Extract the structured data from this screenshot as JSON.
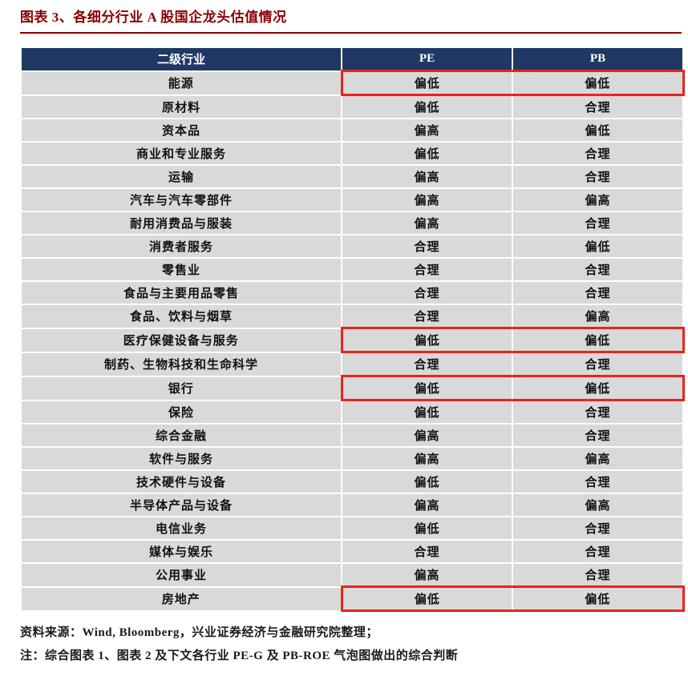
{
  "title": "图表 3、各细分行业 A 股国企龙头估值情况",
  "colors": {
    "title": "#8b0000",
    "header_bg": "#1f3864",
    "row_bg": "#d9d9d9",
    "highlight_red": "#e8231f",
    "cell_text": "#111111",
    "footer_text": "#1a1a1a"
  },
  "table": {
    "columns": [
      "二级行业",
      "PE",
      "PB"
    ],
    "rows": [
      {
        "industry": "能源",
        "pe": "偏低",
        "pb": "偏低",
        "highlight": true
      },
      {
        "industry": "原材料",
        "pe": "偏低",
        "pb": "合理",
        "highlight": false
      },
      {
        "industry": "资本品",
        "pe": "偏高",
        "pb": "偏低",
        "highlight": false
      },
      {
        "industry": "商业和专业服务",
        "pe": "偏低",
        "pb": "合理",
        "highlight": false
      },
      {
        "industry": "运输",
        "pe": "偏高",
        "pb": "合理",
        "highlight": false
      },
      {
        "industry": "汽车与汽车零部件",
        "pe": "偏高",
        "pb": "偏高",
        "highlight": false
      },
      {
        "industry": "耐用消费品与服装",
        "pe": "偏高",
        "pb": "合理",
        "highlight": false
      },
      {
        "industry": "消费者服务",
        "pe": "合理",
        "pb": "偏低",
        "highlight": false
      },
      {
        "industry": "零售业",
        "pe": "合理",
        "pb": "合理",
        "highlight": false
      },
      {
        "industry": "食品与主要用品零售",
        "pe": "合理",
        "pb": "合理",
        "highlight": false
      },
      {
        "industry": "食品、饮料与烟草",
        "pe": "合理",
        "pb": "偏高",
        "highlight": false
      },
      {
        "industry": "医疗保健设备与服务",
        "pe": "偏低",
        "pb": "偏低",
        "highlight": true
      },
      {
        "industry": "制药、生物科技和生命科学",
        "pe": "合理",
        "pb": "合理",
        "highlight": false
      },
      {
        "industry": "银行",
        "pe": "偏低",
        "pb": "偏低",
        "highlight": true
      },
      {
        "industry": "保险",
        "pe": "偏低",
        "pb": "合理",
        "highlight": false
      },
      {
        "industry": "综合金融",
        "pe": "偏高",
        "pb": "合理",
        "highlight": false
      },
      {
        "industry": "软件与服务",
        "pe": "偏高",
        "pb": "偏高",
        "highlight": false
      },
      {
        "industry": "技术硬件与设备",
        "pe": "偏低",
        "pb": "合理",
        "highlight": false
      },
      {
        "industry": "半导体产品与设备",
        "pe": "偏高",
        "pb": "偏高",
        "highlight": false
      },
      {
        "industry": "电信业务",
        "pe": "偏低",
        "pb": "合理",
        "highlight": false
      },
      {
        "industry": "媒体与娱乐",
        "pe": "合理",
        "pb": "合理",
        "highlight": false
      },
      {
        "industry": "公用事业",
        "pe": "偏高",
        "pb": "合理",
        "highlight": false
      },
      {
        "industry": "房地产",
        "pe": "偏低",
        "pb": "偏低",
        "highlight": true
      }
    ]
  },
  "footer": {
    "source": "资料来源：Wind, Bloomberg，兴业证券经济与金融研究院整理；",
    "note": "注：综合图表 1、图表 2 及下文各行业 PE-G 及 PB-ROE 气泡图做出的综合判断"
  }
}
